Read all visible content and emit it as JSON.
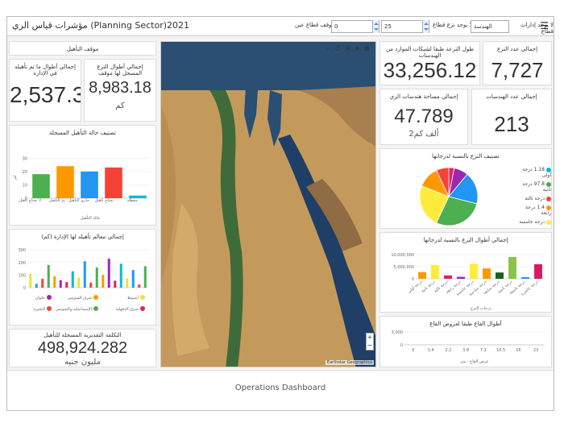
{
  "header": {
    "title": "مؤشرات قياس الري (Planning Sector)2021",
    "filter_label": "لا يوجد إدارات قطاع",
    "filter_value": "الهندسة",
    "range_label": "لا يوجد نزع قطاع",
    "range_min": "0",
    "range_max": "25",
    "sector_label": "موقف قطاع عين"
  },
  "cards": {
    "status_title": "موقف التأهيل",
    "rehab_total_title": "إجمالي أطوال الترع المسجل لها موقف",
    "rehab_total_value": "8,983.18",
    "rehab_total_unit": "كم",
    "rehab_done_title": "إجمالي أطوال ما تم تأهيله في الإدارة",
    "rehab_done_value": "2,537.3",
    "canal_len_title": "طول الترعة طبقا لشبكات الموارد من الهندسات",
    "canal_len_value": "33,256.12",
    "canal_count_title": "إجمالي عدد الترع",
    "canal_count_value": "7,727",
    "area_title": "إجمالي مساحة هندسات الري",
    "area_value": "47.789",
    "area_unit": "ألف كم2",
    "eng_count_title": "إجمالي عدد الهندسات",
    "eng_count_value": "213",
    "cost_title": "التكلفة التقديرية المسجلة للتأهيل",
    "cost_value": "498,924.282",
    "cost_unit": "مليون جنيه"
  },
  "footer": {
    "label": "Operations Dashboard"
  },
  "map": {
    "attribution": "Earthstar Geographics"
  },
  "chart_data": [
    {
      "type": "bar",
      "title": "تصنيف حالة التأهيل المسجلة",
      "xlabel": "حالة التأهيل",
      "ylabel": "كم",
      "categories": [
        "لا تحتاج تأهيل",
        "تم التأهيل",
        "جاري التأهيل",
        "تحتاج تأهيل",
        "معطلة"
      ],
      "values": [
        18,
        24,
        20,
        23,
        2
      ],
      "colors": [
        "#4caf50",
        "#ff9800",
        "#2196f3",
        "#f44336",
        "#00bcd4"
      ],
      "yticks": [
        "0",
        "10",
        "20",
        "30"
      ],
      "ylim": [
        0,
        35
      ]
    },
    {
      "type": "bar",
      "title": "إجمالي معالم تأهيله لها الإدارة (كم)",
      "yticks": [
        "0",
        "100",
        "200",
        "300"
      ],
      "ylim": [
        0,
        320
      ],
      "values": [
        110,
        30,
        70,
        180,
        90,
        60,
        45,
        130,
        80,
        210,
        40,
        160,
        100,
        230,
        55,
        190,
        75,
        140,
        25,
        170
      ],
      "colors": [
        "#e6e63a",
        "#2196f3",
        "#f44336",
        "#4caf50",
        "#ff9800",
        "#9c27b0",
        "#e91e63",
        "#00bcd4",
        "#e6e63a",
        "#2196f3",
        "#f44336",
        "#4caf50",
        "#ff9800",
        "#9c27b0",
        "#e91e63",
        "#00bcd4",
        "#e6e63a",
        "#2196f3",
        "#f44336",
        "#4caf50"
      ],
      "legend": [
        {
          "name": "أسيوط",
          "color": "#e6e63a"
        },
        {
          "name": "شرق السويس",
          "color": "#ff9800"
        },
        {
          "name": "حلوان",
          "color": "#9c27b0"
        },
        {
          "name": "شرق الدقهلية",
          "color": "#e91e63"
        },
        {
          "name": "الإسماعيلية والسويس",
          "color": "#4caf50"
        },
        {
          "name": "البحيرة",
          "color": "#f44336"
        }
      ]
    },
    {
      "type": "pie",
      "title": "تصنيف الترع بالنسبة لدرجاتها",
      "values": [
        3,
        8,
        18,
        28,
        24,
        12,
        7
      ],
      "colors": [
        "#e91e63",
        "#9c27b0",
        "#2196f3",
        "#4caf50",
        "#ffeb3b",
        "#ff9800",
        "#f44336"
      ],
      "legend": [
        {
          "name": "درجة أولى",
          "value": "1.18",
          "color": "#00bcd4"
        },
        {
          "name": "درجة ثانية",
          "value": "97.8",
          "color": "#4caf50"
        },
        {
          "name": "درجة ثالثة",
          "value": "",
          "color": "#f44336"
        },
        {
          "name": "درجة رابعة",
          "value": "1.4",
          "color": "#ff9800"
        },
        {
          "name": "درجة خامسة",
          "value": "",
          "color": "#ffeb3b"
        }
      ]
    },
    {
      "type": "bar",
      "title": "إجمالي أطوال الترع بالنسبة لدرجاتها",
      "xlabel": "درجات الترع",
      "yticks": [
        "0",
        "5,000,000",
        "10,000,000"
      ],
      "ylim": [
        0,
        12000000
      ],
      "categories": [
        "درجة أولى",
        "درجة ثانية",
        "درجة ثالثة",
        "درجة رابعة",
        "درجة خامسة",
        "درجة سادسة",
        "درجة سابعة",
        "درجة ثامنة",
        "درجة تاسعة",
        "درجة عاشرة"
      ],
      "values": [
        2800000,
        5700000,
        1400000,
        800000,
        6200000,
        4300000,
        2600000,
        9000000,
        700000,
        6000000
      ],
      "colors": [
        "#ff9800",
        "#ffeb3b",
        "#e91e63",
        "#9c27b0",
        "#ffeb3b",
        "#ff9800",
        "#1b5e20",
        "#8bc34a",
        "#2196f3",
        "#d81b60"
      ]
    },
    {
      "type": "line",
      "title": "أطوال القاع طبقا لعروض القاع",
      "xlabel": "عرض القاع - متر",
      "xticks": [
        "0",
        "1.4",
        "2.2",
        "3.8",
        "7.2",
        "10.5",
        "16",
        "23"
      ],
      "yticks": [
        "0",
        "3,000"
      ],
      "ylim": [
        0,
        3000
      ]
    }
  ]
}
